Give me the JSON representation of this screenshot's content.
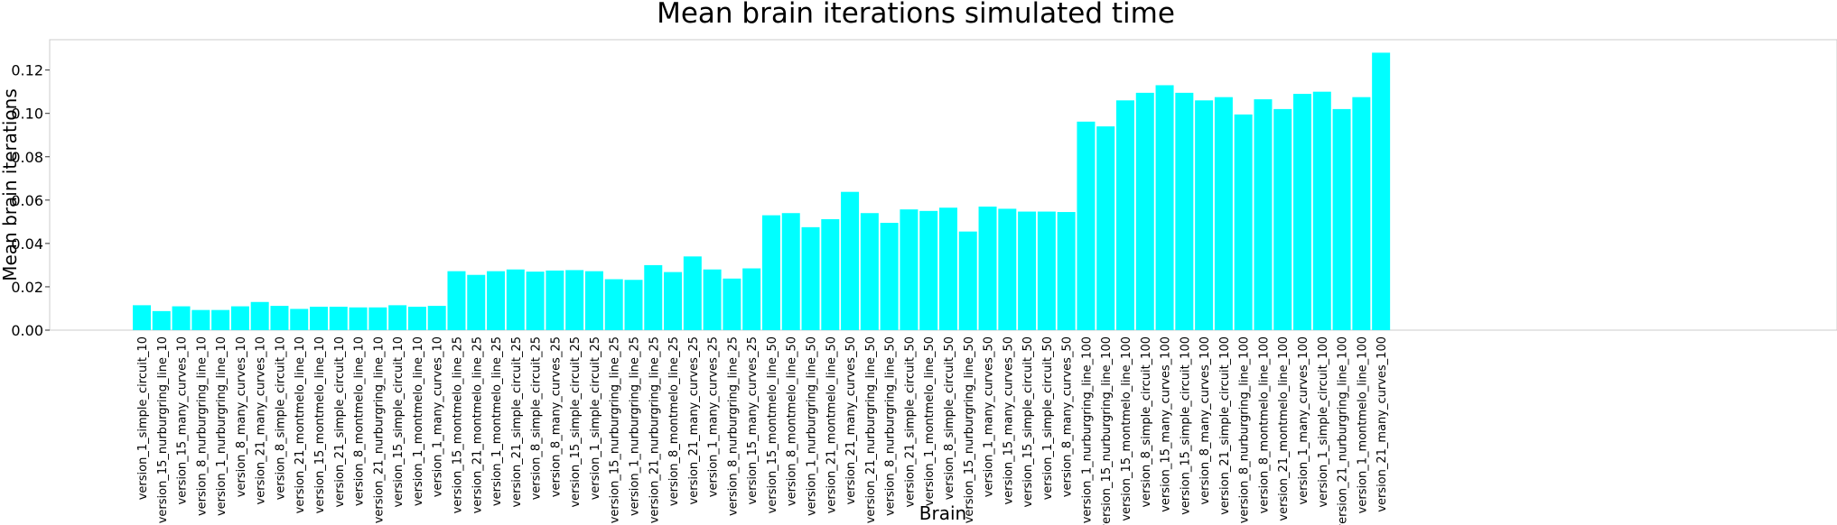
{
  "chart_data": {
    "type": "bar",
    "title": "Mean brain iterations simulated time",
    "xlabel": "Brain",
    "ylabel": "Mean brain iterations",
    "ylim": [
      0,
      0.134
    ],
    "yticks": [
      0.0,
      0.02,
      0.04,
      0.06,
      0.08,
      0.1,
      0.12
    ],
    "grid": false,
    "bar_color": "#00ffff",
    "categories": [
      "version_1_simple_circuit_10",
      "version_15_nurburgring_line_10",
      "version_15_many_curves_10",
      "version_8_nurburgring_line_10",
      "version_1_nurburgring_line_10",
      "version_8_many_curves_10",
      "version_21_many_curves_10",
      "version_8_simple_circuit_10",
      "version_21_montmelo_line_10",
      "version_15_montmelo_line_10",
      "version_21_simple_circuit_10",
      "version_8_montmelo_line_10",
      "version_21_nurburgring_line_10",
      "version_15_simple_circuit_10",
      "version_1_montmelo_line_10",
      "version_1_many_curves_10",
      "version_15_montmelo_line_25",
      "version_21_montmelo_line_25",
      "version_1_montmelo_line_25",
      "version_21_simple_circuit_25",
      "version_8_simple_circuit_25",
      "version_8_many_curves_25",
      "version_15_simple_circuit_25",
      "version_1_simple_circuit_25",
      "version_15_nurburgring_line_25",
      "version_1_nurburgring_line_25",
      "version_21_nurburgring_line_25",
      "version_8_montmelo_line_25",
      "version_21_many_curves_25",
      "version_1_many_curves_25",
      "version_8_nurburgring_line_25",
      "version_15_many_curves_25",
      "version_15_montmelo_line_50",
      "version_8_montmelo_line_50",
      "version_1_nurburgring_line_50",
      "version_21_montmelo_line_50",
      "version_21_many_curves_50",
      "version_21_nurburgring_line_50",
      "version_8_nurburgring_line_50",
      "version_21_simple_circuit_50",
      "version_1_montmelo_line_50",
      "version_8_simple_circuit_50",
      "version_15_nurburgring_line_50",
      "version_1_many_curves_50",
      "version_15_many_curves_50",
      "version_15_simple_circuit_50",
      "version_1_simple_circuit_50",
      "version_8_many_curves_50",
      "version_1_nurburgring_line_100",
      "version_15_nurburgring_line_100",
      "version_15_montmelo_line_100",
      "version_8_simple_circuit_100",
      "version_15_many_curves_100",
      "version_15_simple_circuit_100",
      "version_8_many_curves_100",
      "version_21_simple_circuit_100",
      "version_8_nurburgring_line_100",
      "version_8_montmelo_line_100",
      "version_21_montmelo_line_100",
      "version_1_many_curves_100",
      "version_1_simple_circuit_100",
      "version_21_nurburgring_line_100",
      "version_1_montmelo_line_100",
      "version_21_many_curves_100"
    ],
    "values": [
      0.0115,
      0.0088,
      0.011,
      0.0093,
      0.0093,
      0.011,
      0.013,
      0.0112,
      0.0098,
      0.0108,
      0.0108,
      0.0105,
      0.0105,
      0.0115,
      0.0108,
      0.0112,
      0.0272,
      0.0255,
      0.0272,
      0.028,
      0.027,
      0.0275,
      0.0277,
      0.0272,
      0.0235,
      0.0232,
      0.03,
      0.0268,
      0.034,
      0.028,
      0.0238,
      0.0285,
      0.053,
      0.054,
      0.0475,
      0.0512,
      0.0638,
      0.054,
      0.0495,
      0.0557,
      0.055,
      0.0565,
      0.0455,
      0.057,
      0.056,
      0.0547,
      0.0547,
      0.0545,
      0.0962,
      0.094,
      0.106,
      0.1095,
      0.113,
      0.1095,
      0.106,
      0.1075,
      0.0995,
      0.1065,
      0.102,
      0.109,
      0.11,
      0.102,
      0.1075,
      0.128
    ]
  }
}
